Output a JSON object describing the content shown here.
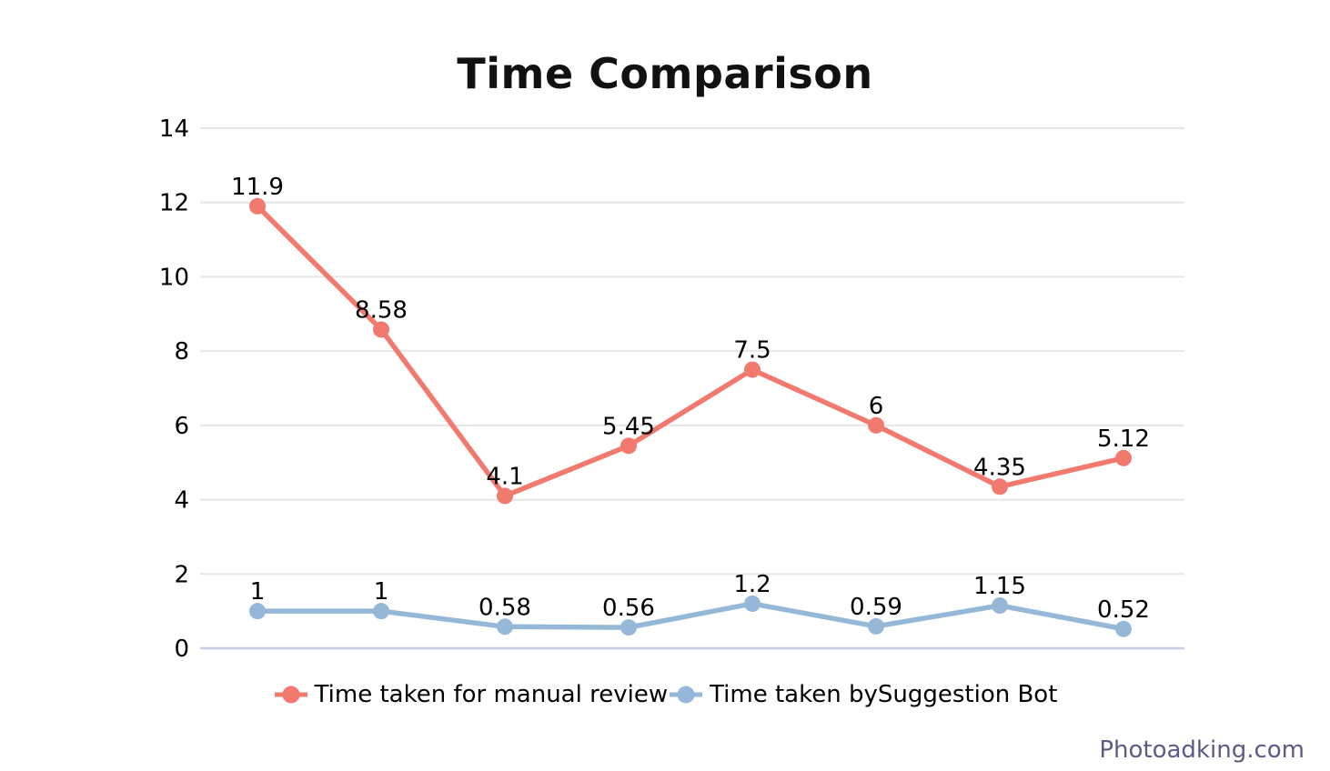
{
  "chart_data": {
    "type": "line",
    "title": "Time Comparison",
    "series": [
      {
        "name": "Time taken for manual review",
        "color": "#f1796e",
        "values": [
          11.9,
          8.58,
          4.1,
          5.45,
          7.5,
          6,
          4.35,
          5.12
        ]
      },
      {
        "name": "Time taken bySuggestion Bot",
        "color": "#95b8d8",
        "values": [
          1,
          1,
          0.58,
          0.56,
          1.2,
          0.59,
          1.15,
          0.52
        ]
      }
    ],
    "ylim": [
      0,
      14
    ],
    "yticks": [
      0,
      2,
      4,
      6,
      8,
      10,
      12,
      14
    ],
    "x_axis_labels": [],
    "grid": true,
    "data_labels": true,
    "legend_position": "bottom",
    "grid_color": "#e6e6e6",
    "zero_line_color": "#c6cde1",
    "label_color": "#000000"
  },
  "watermark": {
    "text": "Photoadking.com",
    "color": "#5b5b85"
  }
}
